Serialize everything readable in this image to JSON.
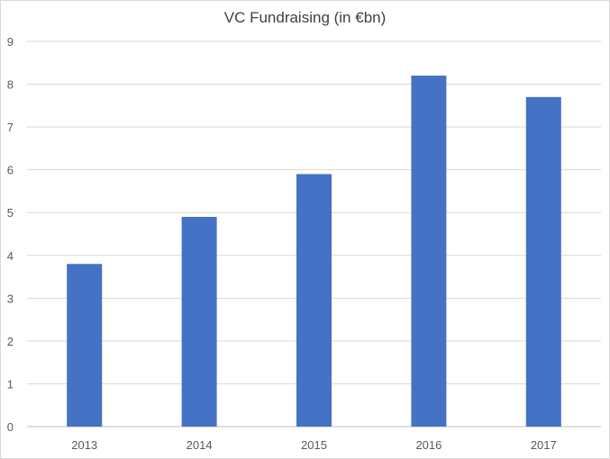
{
  "chart_data": {
    "type": "bar",
    "title": "VC Fundraising (in €bn)",
    "xlabel": "",
    "ylabel": "",
    "categories": [
      "2013",
      "2014",
      "2015",
      "2016",
      "2017"
    ],
    "values": [
      3.8,
      4.9,
      5.9,
      8.2,
      7.7
    ],
    "ylim": [
      0,
      9
    ],
    "yticks": [
      0,
      1,
      2,
      3,
      4,
      5,
      6,
      7,
      8,
      9
    ],
    "grid": true,
    "legend": "none",
    "colors": {
      "bar": "#4472C4",
      "grid": "#d9d9d9",
      "axis": "#bfbfbf",
      "text": "#595959",
      "title": "#404040"
    }
  }
}
